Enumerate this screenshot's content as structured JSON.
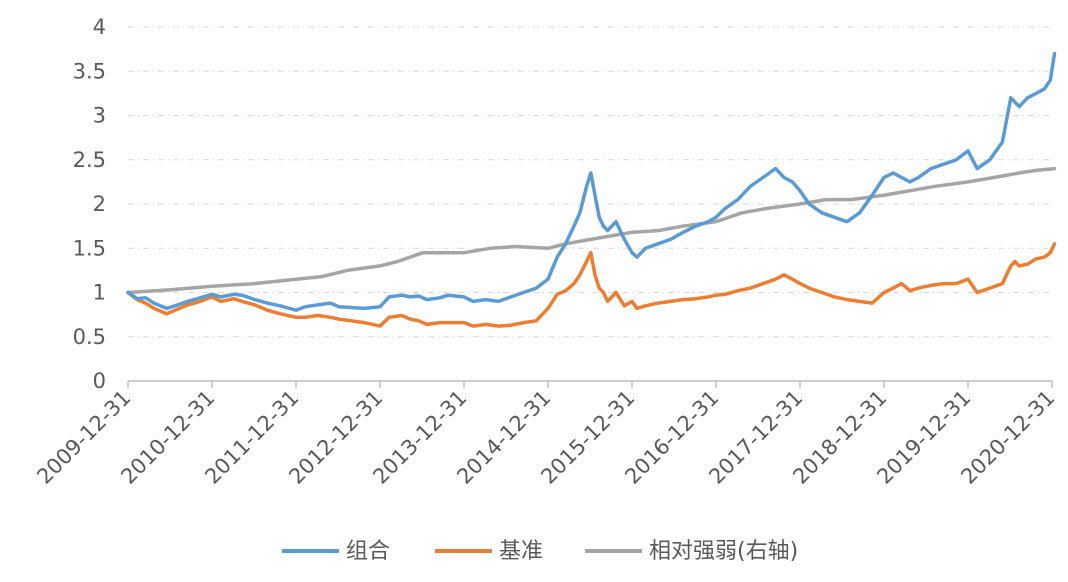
{
  "chart_data": {
    "type": "line",
    "x_labels": [
      "2009-12-31",
      "2010-12-31",
      "2011-12-31",
      "2012-12-31",
      "2013-12-31",
      "2014-12-31",
      "2015-12-31",
      "2016-12-31",
      "2017-12-31",
      "2018-12-31",
      "2019-12-31",
      "2020-12-31"
    ],
    "yticks": [
      "0",
      "0.5",
      "1",
      "1.5",
      "2",
      "2.5",
      "3",
      "3.5",
      "4"
    ],
    "ylim": [
      0,
      4
    ],
    "grid": true,
    "legend_position": "bottom",
    "colors": {
      "组合": "#5b9bd5",
      "基准": "#ed7d31",
      "相对强弱(右轴)": "#a5a5a5"
    },
    "series": [
      {
        "name": "组合",
        "x": [
          2009.99,
          2010.1,
          2010.2,
          2010.3,
          2010.45,
          2010.55,
          2010.7,
          2010.85,
          2010.99,
          2011.1,
          2011.25,
          2011.35,
          2011.5,
          2011.65,
          2011.8,
          2011.99,
          2012.1,
          2012.25,
          2012.4,
          2012.5,
          2012.65,
          2012.8,
          2012.99,
          2013.1,
          2013.25,
          2013.35,
          2013.45,
          2013.55,
          2013.7,
          2013.8,
          2013.99,
          2014.1,
          2014.25,
          2014.4,
          2014.55,
          2014.7,
          2014.85,
          2014.99,
          2015.1,
          2015.2,
          2015.3,
          2015.37,
          2015.45,
          2015.5,
          2015.55,
          2015.6,
          2015.65,
          2015.7,
          2015.8,
          2015.9,
          2015.99,
          2016.05,
          2016.15,
          2016.3,
          2016.45,
          2016.6,
          2016.75,
          2016.9,
          2016.99,
          2017.1,
          2017.25,
          2017.4,
          2017.55,
          2017.7,
          2017.8,
          2017.9,
          2017.99,
          2018.1,
          2018.25,
          2018.4,
          2018.55,
          2018.7,
          2018.85,
          2018.99,
          2019.1,
          2019.2,
          2019.3,
          2019.4,
          2019.55,
          2019.7,
          2019.85,
          2019.99,
          2020.1,
          2020.25,
          2020.4,
          2020.5,
          2020.55,
          2020.6,
          2020.7,
          2020.8,
          2020.9,
          2020.97,
          2021.02
        ],
        "values": [
          1.0,
          0.93,
          0.94,
          0.88,
          0.82,
          0.85,
          0.9,
          0.94,
          0.98,
          0.95,
          0.98,
          0.97,
          0.92,
          0.88,
          0.85,
          0.8,
          0.84,
          0.86,
          0.88,
          0.84,
          0.83,
          0.82,
          0.84,
          0.95,
          0.97,
          0.95,
          0.96,
          0.92,
          0.94,
          0.97,
          0.95,
          0.9,
          0.92,
          0.9,
          0.95,
          1.0,
          1.05,
          1.15,
          1.4,
          1.55,
          1.75,
          1.9,
          2.2,
          2.35,
          2.1,
          1.85,
          1.75,
          1.7,
          1.8,
          1.6,
          1.45,
          1.4,
          1.5,
          1.55,
          1.6,
          1.68,
          1.75,
          1.8,
          1.85,
          1.95,
          2.05,
          2.2,
          2.3,
          2.4,
          2.3,
          2.25,
          2.15,
          2.0,
          1.9,
          1.85,
          1.8,
          1.9,
          2.1,
          2.3,
          2.35,
          2.3,
          2.25,
          2.3,
          2.4,
          2.45,
          2.5,
          2.6,
          2.4,
          2.5,
          2.7,
          3.2,
          3.15,
          3.1,
          3.2,
          3.25,
          3.3,
          3.4,
          3.7
        ]
      },
      {
        "name": "基准",
        "x": [
          2009.99,
          2010.1,
          2010.2,
          2010.3,
          2010.45,
          2010.55,
          2010.7,
          2010.85,
          2010.99,
          2011.1,
          2011.25,
          2011.35,
          2011.5,
          2011.65,
          2011.8,
          2011.99,
          2012.1,
          2012.25,
          2012.4,
          2012.5,
          2012.65,
          2012.8,
          2012.99,
          2013.1,
          2013.25,
          2013.35,
          2013.45,
          2013.55,
          2013.7,
          2013.8,
          2013.99,
          2014.1,
          2014.25,
          2014.4,
          2014.55,
          2014.7,
          2014.85,
          2014.99,
          2015.1,
          2015.2,
          2015.3,
          2015.37,
          2015.45,
          2015.5,
          2015.55,
          2015.6,
          2015.65,
          2015.7,
          2015.8,
          2015.9,
          2015.99,
          2016.05,
          2016.15,
          2016.3,
          2016.45,
          2016.6,
          2016.75,
          2016.9,
          2016.99,
          2017.1,
          2017.25,
          2017.4,
          2017.55,
          2017.7,
          2017.8,
          2017.9,
          2017.99,
          2018.1,
          2018.25,
          2018.4,
          2018.55,
          2018.7,
          2018.85,
          2018.99,
          2019.1,
          2019.2,
          2019.3,
          2019.4,
          2019.55,
          2019.7,
          2019.85,
          2019.99,
          2020.1,
          2020.25,
          2020.4,
          2020.5,
          2020.55,
          2020.6,
          2020.7,
          2020.8,
          2020.9,
          2020.97,
          2021.02
        ],
        "values": [
          1.0,
          0.92,
          0.88,
          0.82,
          0.76,
          0.8,
          0.86,
          0.9,
          0.95,
          0.9,
          0.93,
          0.9,
          0.86,
          0.8,
          0.76,
          0.72,
          0.72,
          0.74,
          0.72,
          0.7,
          0.68,
          0.66,
          0.62,
          0.72,
          0.74,
          0.7,
          0.68,
          0.64,
          0.66,
          0.66,
          0.66,
          0.62,
          0.64,
          0.62,
          0.63,
          0.66,
          0.68,
          0.82,
          0.98,
          1.02,
          1.1,
          1.2,
          1.35,
          1.45,
          1.2,
          1.05,
          1.0,
          0.9,
          1.0,
          0.85,
          0.9,
          0.82,
          0.85,
          0.88,
          0.9,
          0.92,
          0.93,
          0.95,
          0.97,
          0.98,
          1.02,
          1.05,
          1.1,
          1.15,
          1.2,
          1.15,
          1.1,
          1.05,
          1.0,
          0.95,
          0.92,
          0.9,
          0.88,
          1.0,
          1.05,
          1.1,
          1.02,
          1.05,
          1.08,
          1.1,
          1.1,
          1.15,
          1.0,
          1.05,
          1.1,
          1.3,
          1.35,
          1.3,
          1.32,
          1.38,
          1.4,
          1.45,
          1.55
        ]
      },
      {
        "name": "相对强弱(右轴)",
        "x": [
          2009.99,
          2010.5,
          2010.99,
          2011.5,
          2011.99,
          2012.3,
          2012.6,
          2012.99,
          2013.2,
          2013.5,
          2013.7,
          2013.99,
          2014.3,
          2014.6,
          2014.99,
          2015.2,
          2015.5,
          2015.8,
          2015.99,
          2016.3,
          2016.6,
          2016.99,
          2017.3,
          2017.6,
          2017.99,
          2018.3,
          2018.6,
          2018.99,
          2019.3,
          2019.6,
          2019.99,
          2020.3,
          2020.6,
          2020.8,
          2021.02
        ],
        "values": [
          1.0,
          1.03,
          1.07,
          1.1,
          1.15,
          1.18,
          1.25,
          1.3,
          1.35,
          1.45,
          1.45,
          1.45,
          1.5,
          1.52,
          1.5,
          1.55,
          1.6,
          1.65,
          1.68,
          1.7,
          1.75,
          1.8,
          1.9,
          1.95,
          2.0,
          2.05,
          2.05,
          2.1,
          2.15,
          2.2,
          2.25,
          2.3,
          2.35,
          2.38,
          2.4
        ]
      }
    ]
  }
}
